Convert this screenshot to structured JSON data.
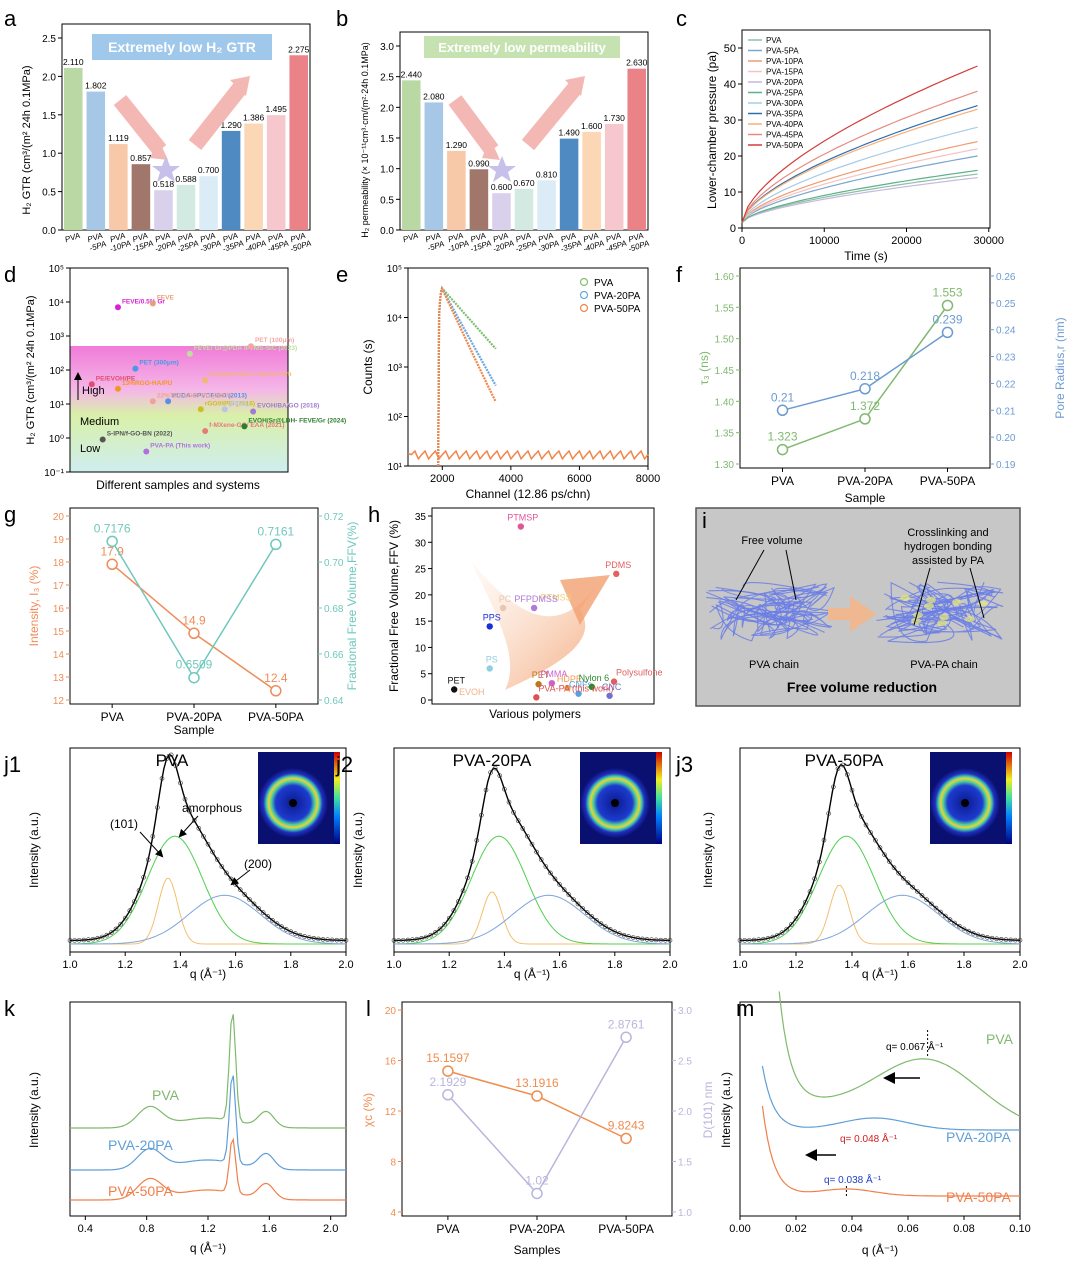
{
  "panels": {
    "a": {
      "letter": "a",
      "banner": "Extremely low H₂ GTR",
      "ylabel": "H₂ GTR (cm³/(m² 24h 0.1MPa)",
      "ylim": [
        0,
        2.5
      ],
      "yticks": [
        "0.0",
        "0.5",
        "1.0",
        "1.5",
        "2.0",
        "2.5"
      ]
    },
    "b": {
      "letter": "b",
      "banner": "Extremely low permeability",
      "ylabel": "H₂ permeability (× 10⁻¹¹cm³·cm/(m²·24h 0.1MPa)",
      "ylim": [
        0,
        3.0
      ],
      "yticks": [
        "0.0",
        "0.5",
        "1.0",
        "1.5",
        "2.0",
        "2.5",
        "3.0"
      ]
    },
    "c": {
      "letter": "c",
      "xlabel": "Time (s)",
      "ylabel": "Lower-chamber pressure (pa)",
      "xticks": [
        "0",
        "10000",
        "20000",
        "30000"
      ],
      "yticks": [
        "0",
        "10",
        "20",
        "30",
        "40",
        "50"
      ]
    },
    "d": {
      "letter": "d",
      "xlabel": "Different samples and systems",
      "ylabel": "H₂ GTR (cm³/(m² 24h 0.1MPa)",
      "yticks": [
        "10⁻¹",
        "10⁰",
        "10¹",
        "10²",
        "10³",
        "10⁴",
        "10⁵"
      ],
      "zones": [
        "High",
        "Medium",
        "Low"
      ]
    },
    "e": {
      "letter": "e",
      "xlabel": "Channel (12.86 ps/chn)",
      "ylabel": "Counts (s)",
      "xticks": [
        "2000",
        "4000",
        "6000",
        "8000"
      ],
      "yticks": [
        "10¹",
        "10²",
        "10³",
        "10⁴",
        "10⁵"
      ]
    },
    "f": {
      "letter": "f",
      "xlabel": "Sample",
      "ylabel_left": "τ₃ (ns)",
      "ylabel_right": "Pore Radius,r (nm)",
      "yticks_left": [
        "1.30",
        "1.35",
        "1.40",
        "1.45",
        "1.50",
        "1.55",
        "1.60"
      ],
      "yticks_right": [
        "0.19",
        "0.20",
        "0.21",
        "0.22",
        "0.23",
        "0.24",
        "0.25",
        "0.26"
      ]
    },
    "g": {
      "letter": "g",
      "xlabel": "Sample",
      "ylabel_left": "Intensity, I₃ (%)",
      "ylabel_right": "Fractional Free Volume,FFV(%)",
      "yticks_left": [
        "12",
        "13",
        "14",
        "15",
        "16",
        "17",
        "18",
        "19",
        "20"
      ],
      "yticks_right": [
        "0.64",
        "0.66",
        "0.68",
        "0.70",
        "0.72"
      ]
    },
    "h": {
      "letter": "h",
      "xlabel": "Various polymers",
      "ylabel": "Fractional Free Volume,FFV (%)",
      "yticks": [
        "0",
        "5",
        "10",
        "15",
        "20",
        "25",
        "30",
        "35"
      ]
    },
    "i": {
      "letter": "i",
      "label_free_volume": "Free volume",
      "label_crosslink_1": "Crosslinking and",
      "label_crosslink_2": "hydrogen bonding",
      "label_crosslink_3": "assisted by PA",
      "label_pva_chain": "PVA chain",
      "label_pvapa_chain": "PVA-PA chain",
      "caption": "Free volume reduction"
    },
    "j1": {
      "letter": "j1",
      "title": "PVA",
      "lbl_101": "(101)",
      "lbl_amorphous": "amorphous",
      "lbl_200": "(200)"
    },
    "j2": {
      "letter": "j2",
      "title": "PVA-20PA"
    },
    "j3": {
      "letter": "j3",
      "title": "PVA-50PA"
    },
    "j_common": {
      "xlabel": "q (Å⁻¹)",
      "ylabel": "Intensity (a.u.)",
      "xticks": [
        "1.0",
        "1.2",
        "1.4",
        "1.6",
        "1.8",
        "2.0"
      ]
    },
    "k": {
      "letter": "k",
      "xlabel": "q (Å⁻¹)",
      "ylabel": "Intensity (a.u.)",
      "xticks": [
        "0.4",
        "0.8",
        "1.2",
        "1.6",
        "2.0"
      ]
    },
    "l": {
      "letter": "l",
      "xlabel": "Samples",
      "ylabel_left": "χc (%)",
      "ylabel_right": "D(101) nm",
      "yticks_left": [
        "4",
        "8",
        "12",
        "16",
        "20"
      ],
      "yticks_right": [
        "1.0",
        "1.5",
        "2.0",
        "2.5",
        "3.0"
      ]
    },
    "m": {
      "letter": "m",
      "xlabel": "q (Å⁻¹)",
      "ylabel": "Intensity (a.u.)",
      "xticks": [
        "0.00",
        "0.02",
        "0.04",
        "0.06",
        "0.08",
        "0.10"
      ],
      "peak_pva": "q= 0.067 Å⁻¹",
      "peak_20": "q= 0.048 Å⁻¹",
      "peak_50": "q= 0.038 Å⁻¹"
    }
  },
  "chart_data": [
    {
      "panel": "a",
      "type": "bar",
      "categories": [
        "PVA",
        "PVA -5PA",
        "PVA -10PA",
        "PVA -15PA",
        "PVA -20PA",
        "PVA -25PA",
        "PVA -30PA",
        "PVA -35PA",
        "PVA -40PA",
        "PVA -45PA",
        "PVA -50PA"
      ],
      "values": [
        2.11,
        1.802,
        1.119,
        0.857,
        0.518,
        0.588,
        0.7,
        1.29,
        1.386,
        1.495,
        2.275
      ],
      "labels": [
        "2.110",
        "1.802",
        "1.119",
        "0.857",
        "0.518",
        "0.588",
        "0.700",
        "1.290",
        "1.386",
        "1.495",
        "2.275"
      ],
      "colors": [
        "#b9d8a4",
        "#a7c7e6",
        "#f8c9a8",
        "#a1776c",
        "#d9d1ec",
        "#d3eae3",
        "#dcecf6",
        "#4f8ac2",
        "#fbd7b6",
        "#f6c7cc",
        "#ea8288"
      ],
      "ylim": [
        0,
        2.5
      ]
    },
    {
      "panel": "b",
      "type": "bar",
      "categories": [
        "PVA",
        "PVA -5PA",
        "PVA -10PA",
        "PVA -15PA",
        "PVA -20PA",
        "PVA -25PA",
        "PVA -30PA",
        "PVA -35PA",
        "PVA -40PA",
        "PVA -45PA",
        "PVA -50PA"
      ],
      "values": [
        2.44,
        2.08,
        1.29,
        0.99,
        0.6,
        0.67,
        0.81,
        1.49,
        1.6,
        1.73,
        2.63
      ],
      "labels": [
        "2.440",
        "2.080",
        "1.290",
        "0.990",
        "0.600",
        "0.670",
        "0.810",
        "1.490",
        "1.600",
        "1.730",
        "2.630"
      ],
      "colors": [
        "#b9d8a4",
        "#a7c7e6",
        "#f8c9a8",
        "#a1776c",
        "#d9d1ec",
        "#d3eae3",
        "#dcecf6",
        "#4f8ac2",
        "#fbd7b6",
        "#f6c7cc",
        "#ea8288"
      ],
      "ylim": [
        0,
        3.0
      ]
    },
    {
      "panel": "c",
      "type": "line",
      "xlim": [
        0,
        30000
      ],
      "ylim": [
        0,
        55
      ],
      "series": [
        {
          "name": "PVA",
          "color": "#8fc0a6",
          "end": 15
        },
        {
          "name": "PVA-5PA",
          "color": "#7aa6cf",
          "end": 20
        },
        {
          "name": "PVA-10PA",
          "color": "#f29a72",
          "end": 24
        },
        {
          "name": "PVA-15PA",
          "color": "#f3c4c0",
          "end": 22
        },
        {
          "name": "PVA-20PA",
          "color": "#c6b9e0",
          "end": 14
        },
        {
          "name": "PVA-25PA",
          "color": "#5fb08a",
          "end": 16
        },
        {
          "name": "PVA-30PA",
          "color": "#a7cce6",
          "end": 28
        },
        {
          "name": "PVA-35PA",
          "color": "#2f6fae",
          "end": 34
        },
        {
          "name": "PVA-40PA",
          "color": "#f7b07a",
          "end": 33
        },
        {
          "name": "PVA-45PA",
          "color": "#e88a80",
          "end": 38
        },
        {
          "name": "PVA-50PA",
          "color": "#d43c3c",
          "end": 45
        }
      ]
    },
    {
      "panel": "d",
      "type": "scatter",
      "points": [
        {
          "label": "FEVE/0.5% Gr",
          "x": 0.22,
          "y": 7000,
          "color": "#d621d6"
        },
        {
          "label": "FEVE",
          "x": 0.38,
          "y": 9000,
          "color": "#e9a07a"
        },
        {
          "label": "FEVE/ Gr@PDA /PTMS-SiC (2023)",
          "x": 0.55,
          "y": 300,
          "color": "#bfe09a"
        },
        {
          "label": "PET (100μm)",
          "x": 0.83,
          "y": 500,
          "color": "#f3a8a8"
        },
        {
          "label": "PET (300μm)",
          "x": 0.3,
          "y": 110,
          "color": "#4a98e8"
        },
        {
          "label": "Commercial H₂ barrier film",
          "x": 0.62,
          "y": 50,
          "color": "#f1b86e"
        },
        {
          "label": "PE/EVOH/PE",
          "x": 0.1,
          "y": 38,
          "color": "#e24c70"
        },
        {
          "label": "13%RGO-HA/PU",
          "x": 0.22,
          "y": 28,
          "color": "#f09a1c"
        },
        {
          "label": "PDDA-SPVDF/GO (2013)",
          "x": 0.45,
          "y": 12,
          "color": "#5a8fe0"
        },
        {
          "label": "EVOH/BA/GO (2018)",
          "x": 0.84,
          "y": 6,
          "color": "#a07cd0"
        },
        {
          "label": "22%TET-eGO/ PU (2017)",
          "x": 0.38,
          "y": 12,
          "color": "#f1a19a"
        },
        {
          "label": "rGO/HPEI (2016)",
          "x": 0.6,
          "y": 7,
          "color": "#c7c21c"
        },
        {
          "label": "(2014)",
          "x": 0.71,
          "y": 7,
          "color": "#b8c6e6"
        },
        {
          "label": "S-IPN/f-GO-BN (2022)",
          "x": 0.15,
          "y": 0.9,
          "color": "#555555"
        },
        {
          "label": "f-MXene-GO/ EAA (2021)",
          "x": 0.62,
          "y": 1.6,
          "color": "#e87a7a"
        },
        {
          "label": "EVOH/Sr@LDH- FEVE/Gr (2024)",
          "x": 0.8,
          "y": 2.2,
          "color": "#2e7d2e"
        },
        {
          "label": "PVA-PA (This work)",
          "x": 0.35,
          "y": 0.4,
          "color": "#b070e0"
        }
      ],
      "ylim_log": [
        -1,
        5
      ]
    },
    {
      "panel": "e",
      "type": "scatter",
      "xlim": [
        1000,
        8000
      ],
      "series": [
        {
          "name": "PVA",
          "color": "#7fbe6e"
        },
        {
          "name": "PVA-20PA",
          "color": "#6aa8de"
        },
        {
          "name": "PVA-50PA",
          "color": "#f0864a"
        }
      ]
    },
    {
      "panel": "f",
      "type": "line",
      "categories": [
        "PVA",
        "PVA-20PA",
        "PVA-50PA"
      ],
      "series": [
        {
          "name": "τ₃",
          "axis": "left",
          "values": [
            1.323,
            1.372,
            1.553
          ],
          "labels": [
            "1.323",
            "1.372",
            "1.553"
          ],
          "color": "#7fb96e"
        },
        {
          "name": "r",
          "axis": "right",
          "values": [
            0.21,
            0.218,
            0.239
          ],
          "labels": [
            "0.21",
            "0.218",
            "0.239"
          ],
          "color": "#6c9bd2"
        }
      ],
      "ylim_left": [
        1.3,
        1.6
      ],
      "ylim_right": [
        0.19,
        0.26
      ]
    },
    {
      "panel": "g",
      "type": "line",
      "categories": [
        "PVA",
        "PVA-20PA",
        "PVA-50PA"
      ],
      "series": [
        {
          "name": "I₃",
          "axis": "left",
          "values": [
            17.9,
            14.9,
            12.4
          ],
          "labels": [
            "17.9",
            "14.9",
            "12.4"
          ],
          "color": "#ee8d5a"
        },
        {
          "name": "FFV",
          "axis": "right",
          "values": [
            0.7176,
            0.6509,
            0.7161
          ],
          "labels": [
            "0.7176",
            "0.6509",
            "0.7161"
          ],
          "color": "#6fc8bd"
        }
      ],
      "ylim_left": [
        12,
        20
      ],
      "ylim_right": [
        0.64,
        0.73
      ]
    },
    {
      "panel": "h",
      "type": "scatter",
      "ylim": [
        0,
        35
      ],
      "points": [
        {
          "label": "PTMSP",
          "x": 0.4,
          "y": 33,
          "color": "#e0569a",
          "shape": "diamond"
        },
        {
          "label": "PDMS",
          "x": 0.83,
          "y": 24,
          "color": "#e36060",
          "shape": "x"
        },
        {
          "label": "PTMSS",
          "x": 0.55,
          "y": 19.5,
          "color": "#f3d07a",
          "shape": "text"
        },
        {
          "label": "PC",
          "x": 0.32,
          "y": 17.5,
          "color": "#e6c8b0",
          "shape": "star"
        },
        {
          "label": "PFPDMSS",
          "x": 0.46,
          "y": 17.5,
          "color": "#b07ad8",
          "shape": "star"
        },
        {
          "label": "PPS",
          "x": 0.26,
          "y": 14,
          "color": "#1a2fd8",
          "shape": "diamond"
        },
        {
          "label": "PS",
          "x": 0.26,
          "y": 6,
          "color": "#8fd0e0",
          "shape": "triangle"
        },
        {
          "label": "PET",
          "x": 0.1,
          "y": 2,
          "color": "#111111",
          "shape": "circle"
        },
        {
          "label": "EVOH",
          "x": 0.17,
          "y": 1.5,
          "color": "#f3b08a",
          "shape": "text"
        },
        {
          "label": "PET",
          "x": 0.48,
          "y": 3,
          "color": "#c0761a",
          "shape": "triangle"
        },
        {
          "label": "PMMA",
          "x": 0.54,
          "y": 3.2,
          "color": "#d060d0",
          "shape": "circle"
        },
        {
          "label": "HDPE",
          "x": 0.61,
          "y": 2.3,
          "color": "#f0a050",
          "shape": "star"
        },
        {
          "label": "CNFs",
          "x": 0.66,
          "y": 1.2,
          "color": "#5aa0e0",
          "shape": "star"
        },
        {
          "label": "Nylon 6",
          "x": 0.72,
          "y": 2.5,
          "color": "#2e8a2e",
          "shape": "triangle"
        },
        {
          "label": "Polysulfone",
          "x": 0.82,
          "y": 3.5,
          "color": "#e06060",
          "shape": "circle"
        },
        {
          "label": "CNC",
          "x": 0.8,
          "y": 0.8,
          "color": "#7070d0",
          "shape": "plus"
        },
        {
          "label": "PVA-PA (this work)",
          "x": 0.47,
          "y": 0.5,
          "color": "#e05050",
          "shape": "star"
        }
      ]
    },
    {
      "panel": "l",
      "type": "line",
      "categories": [
        "PVA",
        "PVA-20PA",
        "PVA-50PA"
      ],
      "series": [
        {
          "name": "χc",
          "axis": "left",
          "values": [
            15.1597,
            13.1916,
            9.8243
          ],
          "labels": [
            "15.1597",
            "13.1916",
            "9.8243"
          ],
          "color": "#f08c4e"
        },
        {
          "name": "D(101)",
          "axis": "right",
          "values": [
            2.1929,
            1.02,
            2.8761
          ],
          "labels": [
            "2.1929",
            "1.02",
            "2.8761"
          ],
          "color": "#b8b6dc"
        }
      ],
      "ylim_left": [
        4,
        20
      ],
      "ylim_right": [
        0.8,
        3.2
      ]
    },
    {
      "panel": "k",
      "type": "line",
      "series": [
        {
          "name": "PVA",
          "color": "#7fb96e"
        },
        {
          "name": "PVA-20PA",
          "color": "#5f9fd8"
        },
        {
          "name": "PVA-50PA",
          "color": "#f07f4c"
        }
      ]
    },
    {
      "panel": "m",
      "type": "line",
      "series": [
        {
          "name": "PVA",
          "color": "#7fb96e"
        },
        {
          "name": "PVA-20PA",
          "color": "#5f9fd8"
        },
        {
          "name": "PVA-50PA",
          "color": "#f07f4c"
        }
      ]
    }
  ]
}
